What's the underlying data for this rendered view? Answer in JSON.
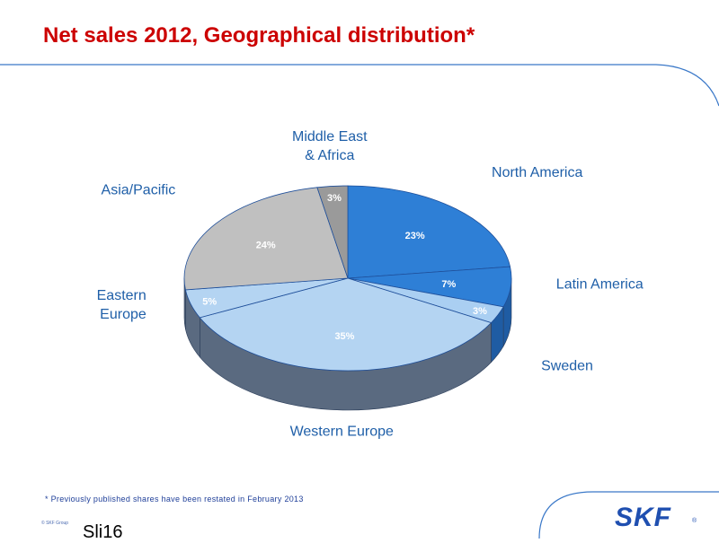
{
  "title": "Net sales 2012, Geographical distribution*",
  "footnote": "* Previously published shares have been restated in February 2013",
  "copyright": "© SKF Group",
  "slide_number": "Sli16",
  "logo": {
    "text": "SKF",
    "registered": "®",
    "color": "#1f4fb0"
  },
  "colors": {
    "title": "#cc0000",
    "labels": "#1f5fa8",
    "accent_line": "#3a78c8"
  },
  "chart_data": {
    "type": "pie",
    "title": "",
    "slices": [
      {
        "label": "North America",
        "value": 23,
        "value_label": "23%",
        "color": "#2e7fd6",
        "side": "#1f5ca3"
      },
      {
        "label": "Latin America",
        "value": 7,
        "value_label": "7%",
        "color": "#2e7fd6",
        "side": "#1f5ca3"
      },
      {
        "label": "Sweden",
        "value": 3,
        "value_label": "3%",
        "color": "#aacff2",
        "side": "#1f5ca3"
      },
      {
        "label": "Western Europe",
        "value": 35,
        "value_label": "35%",
        "color": "#b4d4f2",
        "side": "#5a6a80"
      },
      {
        "label": "Eastern Europe",
        "value": 5,
        "value_label": "5%",
        "color": "#b4d4f2",
        "side": "#5a6a80"
      },
      {
        "label": "Asia/Pacific",
        "value": 24,
        "value_label": "24%",
        "color": "#c0c0c0",
        "side": "#5a6a80"
      },
      {
        "label": "Middle East & Africa",
        "value": 3,
        "value_label": "3%",
        "color": "#9a9a9a",
        "side": "#5a6a80"
      }
    ]
  }
}
